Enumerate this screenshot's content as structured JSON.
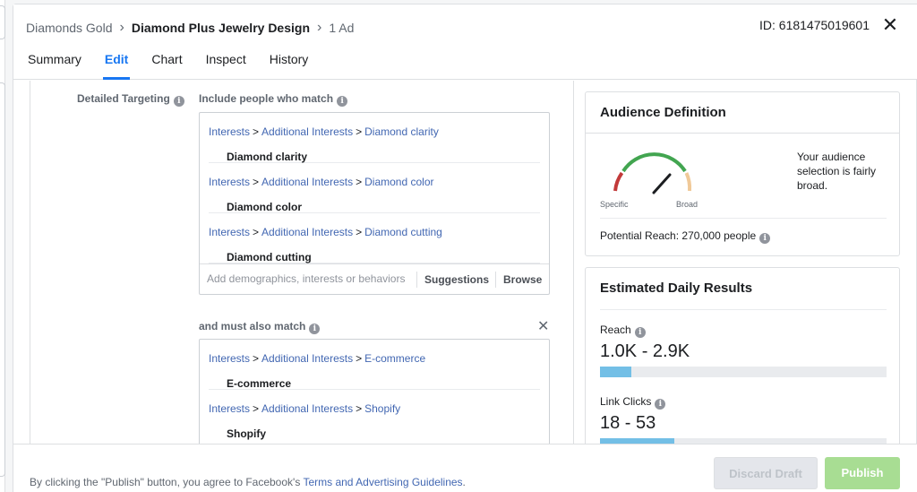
{
  "header": {
    "breadcrumb": {
      "campaign": "Diamonds Gold",
      "adset": "Diamond Plus Jewelry Design",
      "ad": "1 Ad"
    },
    "ad_id": "ID: 6181475019601",
    "tabs": [
      "Summary",
      "Edit",
      "Chart",
      "Inspect",
      "History"
    ],
    "active_tab": "Edit"
  },
  "targeting": {
    "label": "Detailed Targeting",
    "include_label": "Include people who match",
    "include_items": [
      {
        "path": [
          "Interests",
          "Additional Interests",
          "Diamond clarity"
        ],
        "name": "Diamond clarity"
      },
      {
        "path": [
          "Interests",
          "Additional Interests",
          "Diamond color"
        ],
        "name": "Diamond color"
      },
      {
        "path": [
          "Interests",
          "Additional Interests",
          "Diamond cutting"
        ],
        "name": "Diamond cutting"
      }
    ],
    "input_placeholder": "Add demographics, interests or behaviors",
    "suggestions_label": "Suggestions",
    "browse_label": "Browse",
    "also_match_label": "and must also match",
    "also_items": [
      {
        "path": [
          "Interests",
          "Additional Interests",
          "E-commerce"
        ],
        "name": "E-commerce"
      },
      {
        "path": [
          "Interests",
          "Additional Interests",
          "Shopify"
        ],
        "name": "Shopify"
      }
    ]
  },
  "audience": {
    "title": "Audience Definition",
    "gauge_specific": "Specific",
    "gauge_broad": "Broad",
    "description": "Your audience selection is fairly broad.",
    "potential_reach_label": "Potential Reach:",
    "potential_reach_value": "270,000 people"
  },
  "estimates": {
    "title": "Estimated Daily Results",
    "reach_label": "Reach",
    "reach_value": "1.0K - 2.9K",
    "reach_fill": 0.11,
    "clicks_label": "Link Clicks",
    "clicks_value": "18 - 53",
    "clicks_fill": 0.26
  },
  "footer": {
    "legal_prefix": "By clicking the \"Publish\" button, you agree to Facebook's",
    "legal_link": "Terms and Advertising Guidelines",
    "legal_suffix": ".",
    "discard_label": "Discard Draft",
    "publish_label": "Publish"
  },
  "colors": {
    "accent": "#1877f2",
    "link": "#4267b2",
    "publish": "#a8dd93",
    "bar_fill": "#73bfe6"
  }
}
